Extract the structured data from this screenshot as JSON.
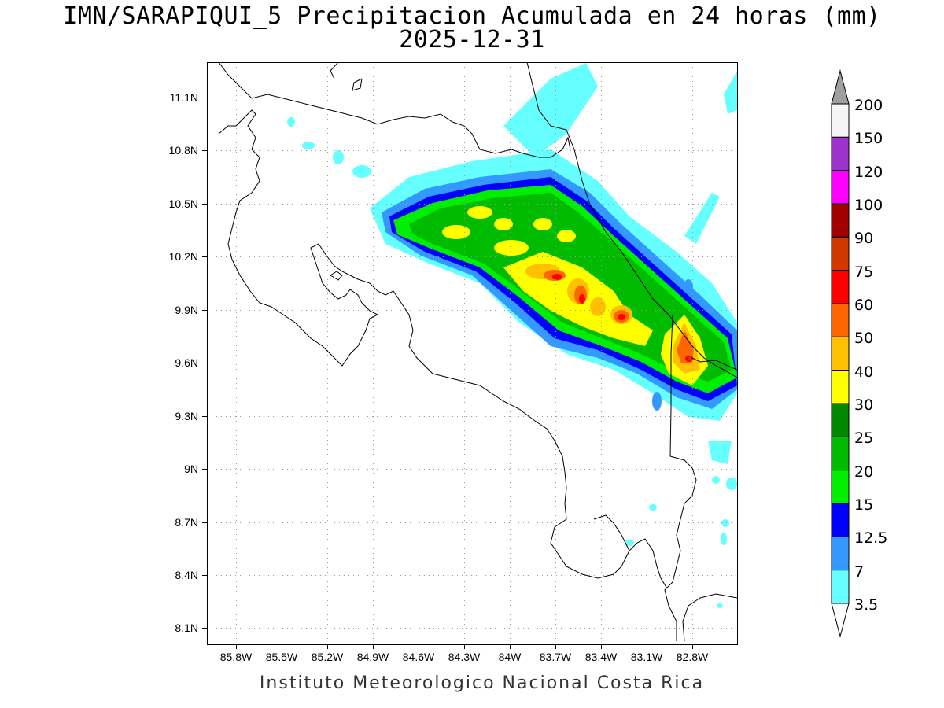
{
  "map": {
    "title_line_1": "IMN/SARAPIQUI_5 Precipitacion Acumulada en 24 horas (mm)",
    "title_line_2": "2025-12-31",
    "footer": "Instituto Meteorologico Nacional Costa Rica",
    "lon_labels": [
      "85.8W",
      "85.5W",
      "85.2W",
      "84.9W",
      "84.6W",
      "84.3W",
      "84W",
      "83.7W",
      "83.4W",
      "83.1W",
      "82.8W"
    ],
    "lat_labels": [
      "11.1N",
      "10.8N",
      "10.5N",
      "10.2N",
      "9.9N",
      "9.6N",
      "9.3N",
      "9N",
      "8.7N",
      "8.4N",
      "8.1N"
    ],
    "colorbar": {
      "labels": [
        "200",
        "150",
        "120",
        "100",
        "90",
        "75",
        "60",
        "50",
        "40",
        "30",
        "25",
        "20",
        "15",
        "12.5",
        "7",
        "3.5"
      ],
      "colors": [
        "#f5f5f5",
        "#9b33cc",
        "#ff00ff",
        "#a30000",
        "#d03800",
        "#ff0000",
        "#ff6600",
        "#ffc000",
        "#ffff00",
        "#008800",
        "#00bb00",
        "#00ee00",
        "#0000ff",
        "#3399ff",
        "#66ffff"
      ],
      "over_color": "#a0a0a0",
      "under_color": "#ffffff"
    }
  }
}
